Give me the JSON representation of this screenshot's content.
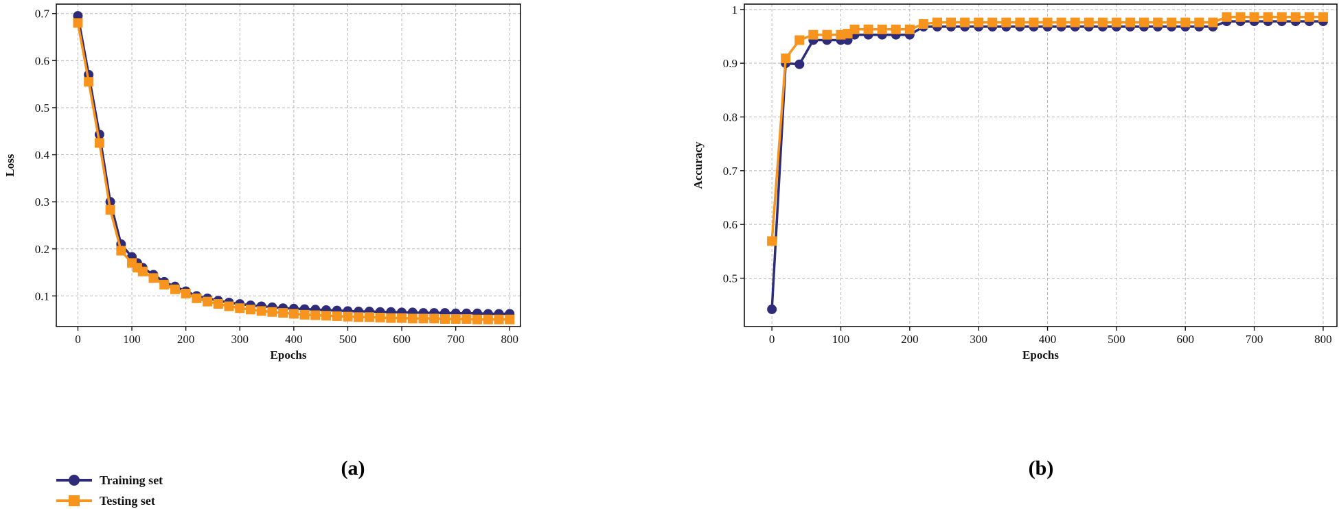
{
  "colors": {
    "training": "#2e2c78",
    "testing": "#f7941d",
    "grid": "#b8b8b8"
  },
  "legend": {
    "placement": "bottom-left",
    "entries": [
      {
        "label": "Training set",
        "marker": "circle"
      },
      {
        "label": "Testing set",
        "marker": "square"
      }
    ]
  },
  "chart_data": [
    {
      "type": "line",
      "panel_label": "(a)",
      "xlabel": "Epochs",
      "ylabel": "Loss",
      "xlim": [
        -40,
        820
      ],
      "ylim": [
        0.035,
        0.72
      ],
      "xticks": [
        0,
        100,
        200,
        300,
        400,
        500,
        600,
        700,
        800
      ],
      "yticks": [
        0.1,
        0.2,
        0.3,
        0.4,
        0.5,
        0.6,
        0.7
      ],
      "grid": true,
      "x": [
        0,
        20,
        40,
        60,
        80,
        100,
        110,
        120,
        140,
        160,
        180,
        200,
        220,
        240,
        260,
        280,
        300,
        320,
        340,
        360,
        380,
        400,
        420,
        440,
        460,
        480,
        500,
        520,
        540,
        560,
        580,
        600,
        620,
        640,
        660,
        680,
        700,
        720,
        740,
        760,
        780,
        800
      ],
      "series": [
        {
          "name": "Training set",
          "values": [
            0.695,
            0.57,
            0.443,
            0.3,
            0.21,
            0.183,
            0.17,
            0.16,
            0.145,
            0.13,
            0.12,
            0.11,
            0.1,
            0.095,
            0.09,
            0.086,
            0.083,
            0.08,
            0.078,
            0.076,
            0.074,
            0.073,
            0.072,
            0.071,
            0.07,
            0.069,
            0.068,
            0.067,
            0.067,
            0.066,
            0.066,
            0.065,
            0.065,
            0.064,
            0.064,
            0.064,
            0.063,
            0.063,
            0.063,
            0.062,
            0.062,
            0.062
          ]
        },
        {
          "name": "Testing set",
          "values": [
            0.68,
            0.555,
            0.425,
            0.283,
            0.196,
            0.17,
            0.16,
            0.152,
            0.138,
            0.124,
            0.114,
            0.105,
            0.095,
            0.088,
            0.083,
            0.078,
            0.074,
            0.071,
            0.068,
            0.066,
            0.064,
            0.062,
            0.06,
            0.059,
            0.058,
            0.057,
            0.056,
            0.055,
            0.055,
            0.054,
            0.053,
            0.053,
            0.052,
            0.052,
            0.052,
            0.051,
            0.051,
            0.051,
            0.05,
            0.05,
            0.05,
            0.05
          ]
        }
      ]
    },
    {
      "type": "line",
      "panel_label": "(b)",
      "xlabel": "Epochs",
      "ylabel": "Accuracy",
      "xlim": [
        -40,
        820
      ],
      "ylim": [
        0.41,
        1.01
      ],
      "xticks": [
        0,
        100,
        200,
        300,
        400,
        500,
        600,
        700,
        800
      ],
      "yticks": [
        0.5,
        0.6,
        0.7,
        0.8,
        0.9,
        1.0
      ],
      "grid": true,
      "x": [
        0,
        20,
        40,
        60,
        80,
        100,
        110,
        120,
        140,
        160,
        180,
        200,
        220,
        240,
        260,
        280,
        300,
        320,
        340,
        360,
        380,
        400,
        420,
        440,
        460,
        480,
        500,
        520,
        540,
        560,
        580,
        600,
        620,
        640,
        660,
        680,
        700,
        720,
        740,
        760,
        780,
        800
      ],
      "series": [
        {
          "name": "Training set",
          "values": [
            0.442,
            0.9,
            0.898,
            0.943,
            0.943,
            0.943,
            0.943,
            0.953,
            0.953,
            0.953,
            0.953,
            0.953,
            0.968,
            0.968,
            0.968,
            0.968,
            0.968,
            0.968,
            0.968,
            0.968,
            0.968,
            0.968,
            0.968,
            0.968,
            0.968,
            0.968,
            0.968,
            0.968,
            0.968,
            0.968,
            0.968,
            0.968,
            0.968,
            0.968,
            0.978,
            0.978,
            0.978,
            0.978,
            0.978,
            0.978,
            0.978,
            0.978
          ]
        },
        {
          "name": "Testing set",
          "values": [
            0.569,
            0.909,
            0.943,
            0.953,
            0.953,
            0.953,
            0.955,
            0.963,
            0.963,
            0.963,
            0.963,
            0.963,
            0.973,
            0.976,
            0.976,
            0.976,
            0.976,
            0.976,
            0.976,
            0.976,
            0.976,
            0.976,
            0.976,
            0.976,
            0.976,
            0.976,
            0.976,
            0.976,
            0.976,
            0.976,
            0.976,
            0.976,
            0.976,
            0.976,
            0.986,
            0.986,
            0.986,
            0.986,
            0.986,
            0.986,
            0.986,
            0.986
          ]
        }
      ]
    }
  ]
}
